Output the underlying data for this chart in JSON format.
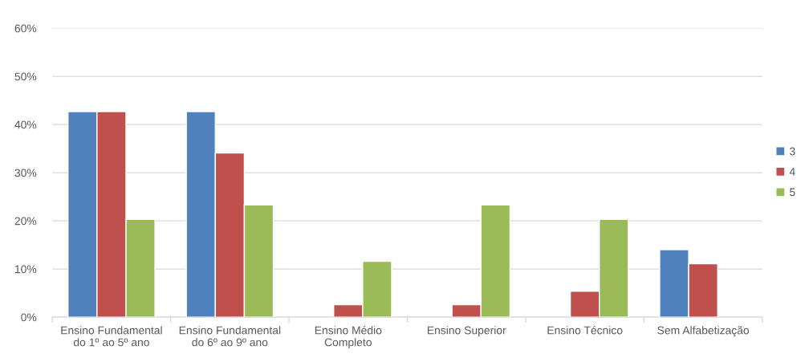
{
  "chart_data": {
    "type": "bar",
    "categories": [
      "Ensino Fundamental\ndo 1º ao 5º ano",
      "Ensino Fundamental\ndo 6º ao 9º ano",
      "Ensino Médio\nCompleto",
      "Ensino Superior",
      "Ensino Técnico",
      "Sem Alfabetização"
    ],
    "series": [
      {
        "name": "3",
        "color": "#4f81bd",
        "values": [
          42.7,
          42.7,
          null,
          null,
          null,
          14.0
        ]
      },
      {
        "name": "4",
        "color": "#c0504d",
        "values": [
          42.7,
          34.1,
          2.6,
          2.6,
          5.4,
          11.1
        ]
      },
      {
        "name": "5",
        "color": "#9bbb59",
        "values": [
          20.3,
          23.3,
          11.6,
          23.3,
          20.3,
          null
        ]
      }
    ],
    "ylim": [
      0,
      60
    ],
    "yticks": [
      {
        "value": 0,
        "label": "0%"
      },
      {
        "value": 10,
        "label": "10%"
      },
      {
        "value": 20,
        "label": "20%"
      },
      {
        "value": 30,
        "label": "30%"
      },
      {
        "value": 40,
        "label": "40%"
      },
      {
        "value": 50,
        "label": "50%"
      },
      {
        "value": 60,
        "label": "60%"
      }
    ],
    "grid": "y",
    "legend": "right"
  }
}
